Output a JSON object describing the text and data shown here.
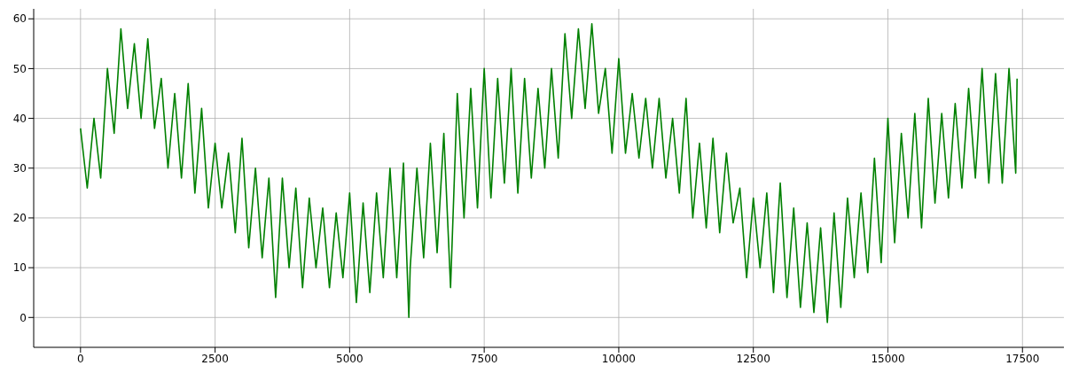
{
  "chart_data": {
    "type": "line",
    "color": "#008000",
    "grid": true,
    "marker": "none",
    "line_style": "solid",
    "xlim": [
      -870,
      18270
    ],
    "ylim": [
      -6,
      62
    ],
    "xticks": [
      0,
      2500,
      5000,
      7500,
      10000,
      12500,
      15000,
      17500
    ],
    "yticks": [
      0,
      10,
      20,
      30,
      40,
      50,
      60
    ],
    "x": [
      0,
      125,
      250,
      375,
      500,
      625,
      750,
      875,
      1000,
      1125,
      1250,
      1375,
      1500,
      1625,
      1750,
      1875,
      2000,
      2125,
      2250,
      2375,
      2500,
      2625,
      2750,
      2875,
      3000,
      3125,
      3250,
      3375,
      3500,
      3625,
      3750,
      3875,
      4000,
      4125,
      4250,
      4375,
      4500,
      4625,
      4750,
      4875,
      5000,
      5125,
      5250,
      5375,
      5500,
      5625,
      5750,
      5875,
      6000,
      6100,
      6125,
      6250,
      6375,
      6500,
      6625,
      6750,
      6875,
      7000,
      7125,
      7250,
      7375,
      7500,
      7625,
      7750,
      7875,
      8000,
      8125,
      8250,
      8375,
      8500,
      8625,
      8750,
      8875,
      9000,
      9125,
      9250,
      9375,
      9500,
      9625,
      9750,
      9875,
      10000,
      10125,
      10250,
      10375,
      10500,
      10625,
      10750,
      10875,
      11000,
      11125,
      11250,
      11375,
      11500,
      11625,
      11750,
      11875,
      12000,
      12125,
      12250,
      12375,
      12500,
      12625,
      12750,
      12875,
      13000,
      13125,
      13250,
      13375,
      13500,
      13625,
      13750,
      13875,
      14000,
      14125,
      14250,
      14375,
      14500,
      14625,
      14750,
      14875,
      15000,
      15125,
      15250,
      15375,
      15500,
      15625,
      15750,
      15875,
      16000,
      16125,
      16250,
      16375,
      16500,
      16625,
      16750,
      16875,
      17000,
      17125,
      17250,
      17375,
      17400
    ],
    "values": [
      38,
      26,
      40,
      28,
      50,
      37,
      58,
      42,
      55,
      40,
      56,
      38,
      48,
      30,
      45,
      28,
      47,
      25,
      42,
      22,
      35,
      22,
      33,
      17,
      36,
      14,
      30,
      12,
      28,
      4,
      28,
      10,
      26,
      6,
      24,
      10,
      22,
      6,
      21,
      8,
      25,
      3,
      23,
      5,
      25,
      8,
      30,
      8,
      31,
      0,
      10,
      30,
      12,
      35,
      13,
      37,
      6,
      45,
      20,
      46,
      22,
      50,
      24,
      48,
      27,
      50,
      25,
      48,
      28,
      46,
      30,
      50,
      32,
      57,
      40,
      58,
      42,
      59,
      41,
      50,
      33,
      52,
      33,
      45,
      32,
      44,
      30,
      44,
      28,
      40,
      25,
      44,
      20,
      35,
      18,
      36,
      17,
      33,
      19,
      26,
      8,
      24,
      10,
      25,
      5,
      27,
      4,
      22,
      2,
      19,
      1,
      18,
      -1,
      21,
      2,
      24,
      8,
      25,
      9,
      32,
      11,
      40,
      15,
      37,
      20,
      41,
      18,
      44,
      23,
      41,
      24,
      43,
      26,
      46,
      28,
      50,
      27,
      49,
      27,
      50,
      29,
      48
    ]
  }
}
